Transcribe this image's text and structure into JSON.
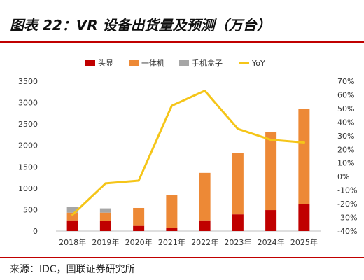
{
  "header": {
    "title": "图表 22：VR 设备出货量及预测（万台）"
  },
  "footer": {
    "source": "来源：IDC，国联证券研究所"
  },
  "colors": {
    "rule": "#c00000",
    "headset": "#c00000",
    "all_in_one": "#ed8936",
    "box": "#a6a6a6",
    "yoy": "#f5c518"
  },
  "chart_data": {
    "type": "bar",
    "stacked": true,
    "categories": [
      "2018年",
      "2019年",
      "2020年",
      "2021年",
      "2022年",
      "2023年",
      "2024年",
      "2025年"
    ],
    "series": [
      {
        "name": "头显",
        "type": "bar",
        "color": "#c00000",
        "values": [
          250,
          230,
          120,
          80,
          250,
          390,
          490,
          630
        ]
      },
      {
        "name": "一体机",
        "type": "bar",
        "color": "#ed8936",
        "values": [
          180,
          200,
          420,
          760,
          1110,
          1440,
          1820,
          2230
        ]
      },
      {
        "name": "手机盒子",
        "type": "bar",
        "color": "#a6a6a6",
        "values": [
          140,
          100,
          0,
          0,
          0,
          0,
          0,
          0
        ]
      },
      {
        "name": "YoY",
        "type": "line",
        "axis": "right",
        "color": "#f5c518",
        "values": [
          -28,
          -5,
          -3,
          52,
          63,
          35,
          27,
          25
        ]
      }
    ],
    "ylim": [
      0,
      3500
    ],
    "yticks": [
      "0",
      "500",
      "1000",
      "1500",
      "2000",
      "2500",
      "3000",
      "3500"
    ],
    "y2lim": [
      -40,
      70
    ],
    "y2ticks": [
      "-40%",
      "-30%",
      "-20%",
      "-10%",
      "0%",
      "10%",
      "20%",
      "30%",
      "40%",
      "50%",
      "60%",
      "70%"
    ],
    "legend_position": "top",
    "grid": false
  }
}
